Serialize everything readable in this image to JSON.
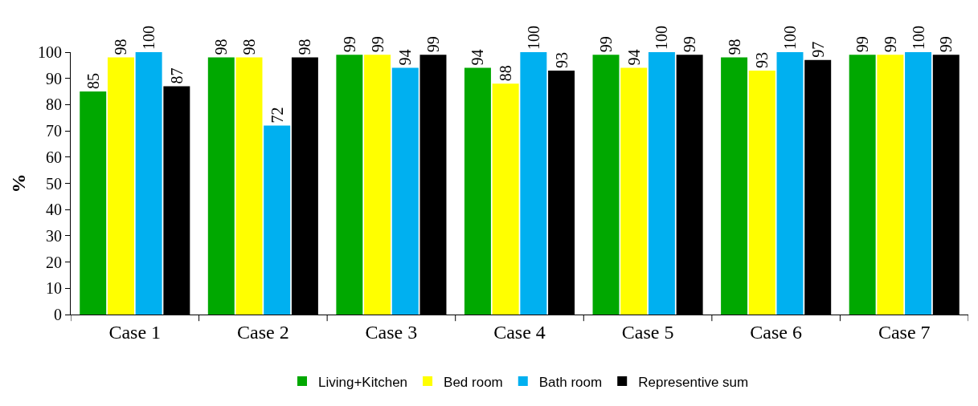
{
  "chart_data": {
    "type": "bar",
    "ylabel": "%",
    "categories": [
      "Case 1",
      "Case 2",
      "Case 3",
      "Case 4",
      "Case 5",
      "Case 6",
      "Case 7"
    ],
    "series": [
      {
        "name": "Living+Kitchen",
        "color": "#00a800",
        "values": [
          85,
          98,
          99,
          94,
          99,
          98,
          99
        ]
      },
      {
        "name": "Bed room",
        "color": "#ffff00",
        "values": [
          98,
          98,
          99,
          88,
          94,
          93,
          99
        ]
      },
      {
        "name": "Bath room",
        "color": "#00b0f0",
        "values": [
          100,
          72,
          94,
          100,
          100,
          100,
          100
        ]
      },
      {
        "name": "Representive sum",
        "color": "#000000",
        "values": [
          87,
          98,
          99,
          93,
          99,
          97,
          99
        ]
      }
    ],
    "ylim": [
      0,
      100
    ],
    "yticks": [
      0,
      10,
      20,
      30,
      40,
      50,
      60,
      70,
      80,
      90,
      100
    ],
    "legend": "bottom",
    "data_labels": true
  }
}
